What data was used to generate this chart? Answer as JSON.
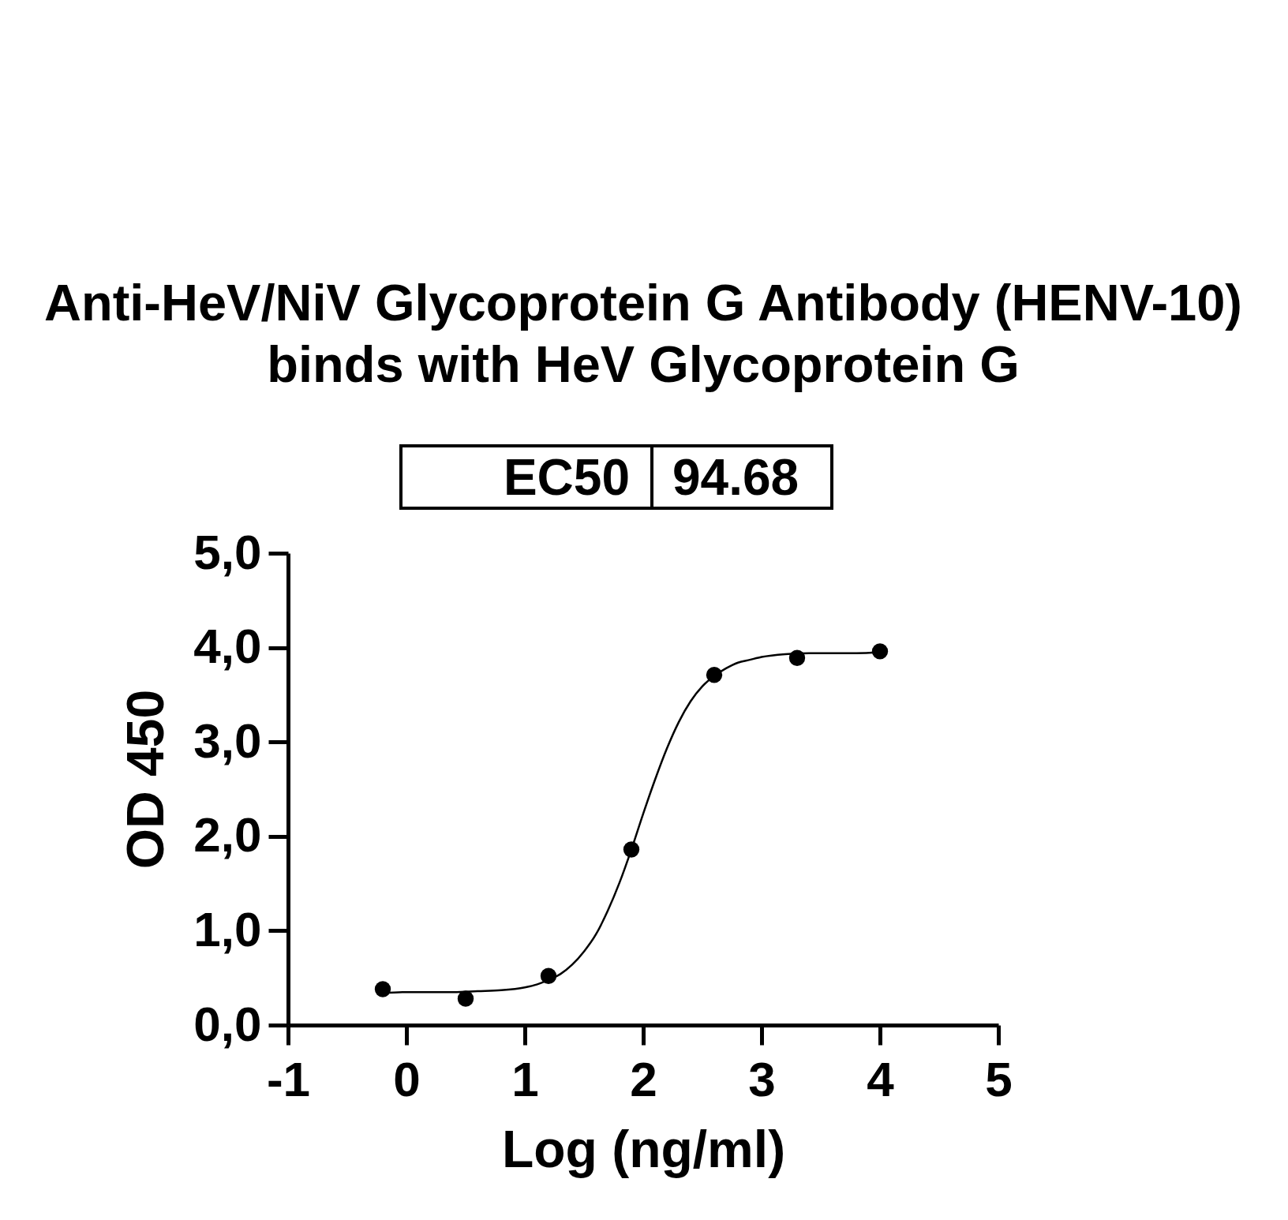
{
  "chart_data": {
    "type": "scatter",
    "title": "Anti-HeV/NiV Glycoprotein G Antibody (HENV-10)\nbinds with HeV Glycoprotein G",
    "xlabel": "Log (ng/ml)",
    "ylabel": "OD 450",
    "annotations": [
      "EC50",
      "94.68"
    ],
    "marker": "circle",
    "series": [
      {
        "color": "#000000",
        "x": [
          -0.2,
          0.5,
          1.2,
          1.9,
          2.6,
          3.3,
          4.0
        ],
        "values": [
          0.38,
          0.28,
          0.52,
          1.86,
          3.71,
          3.89,
          3.96
        ]
      },
      {
        "type": "line",
        "color": "#000000",
        "marker": "none",
        "x": [
          -0.2,
          0,
          0.2,
          0.4,
          0.6,
          0.8,
          1.0,
          1.1,
          1.2,
          1.3,
          1.4,
          1.5,
          1.6,
          1.7,
          1.8,
          1.9,
          2.0,
          2.1,
          2.2,
          2.3,
          2.4,
          2.5,
          2.6,
          2.7,
          2.8,
          2.9,
          3.0,
          3.2,
          3.4,
          3.6,
          3.8,
          4.0
        ],
        "values": [
          0.34,
          0.35,
          0.35,
          0.35,
          0.36,
          0.37,
          0.4,
          0.43,
          0.48,
          0.54,
          0.64,
          0.78,
          0.96,
          1.21,
          1.51,
          1.86,
          2.24,
          2.6,
          2.93,
          3.21,
          3.43,
          3.59,
          3.7,
          3.78,
          3.84,
          3.87,
          3.9,
          3.93,
          3.94,
          3.94,
          3.94,
          3.95
        ]
      }
    ],
    "xlim": [
      -1,
      5
    ],
    "xticks": [
      -1,
      0,
      1,
      2,
      3,
      4,
      5
    ],
    "ylim": [
      0,
      5
    ],
    "yticks": [
      {
        "value": 0,
        "label": "0,0"
      },
      {
        "value": 1,
        "label": "1,0"
      },
      {
        "value": 2,
        "label": "2,0"
      },
      {
        "value": 3,
        "label": "3,0"
      },
      {
        "value": 4,
        "label": "4,0"
      },
      {
        "value": 5,
        "label": "5,0"
      }
    ]
  }
}
